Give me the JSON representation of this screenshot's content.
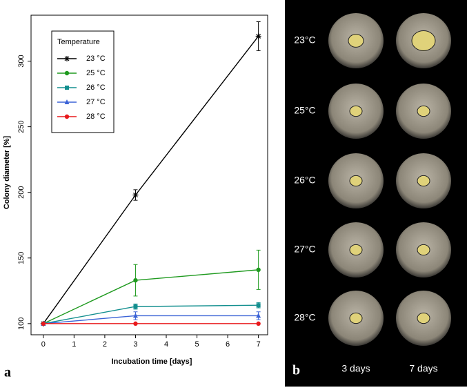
{
  "chart_data": {
    "type": "line",
    "panel_label": "a",
    "x_label": "Incubation time [days]",
    "y_label": "Colony diameter [%]",
    "x": [
      0,
      3,
      7
    ],
    "xlim": [
      -0.4,
      7.3
    ],
    "xticks": [
      0,
      1,
      2,
      3,
      4,
      5,
      6,
      7
    ],
    "ylim": [
      91.5,
      335
    ],
    "yticks": [
      100,
      150,
      200,
      250,
      300
    ],
    "legend_title": "Temperature",
    "legend_position": "upper left",
    "series": [
      {
        "name": "23 °C",
        "color": "#000000",
        "marker": "star",
        "values": [
          100,
          198,
          319
        ],
        "errors": [
          0,
          4,
          11
        ]
      },
      {
        "name": "25 °C",
        "color": "#1f9a1f",
        "marker": "circle",
        "values": [
          100,
          133,
          141
        ],
        "errors": [
          0,
          12,
          15
        ]
      },
      {
        "name": "26 °C",
        "color": "#138f8f",
        "marker": "square",
        "values": [
          100,
          113,
          114
        ],
        "errors": [
          0,
          2,
          2
        ]
      },
      {
        "name": "27 °C",
        "color": "#3a62d6",
        "marker": "triangle",
        "values": [
          100,
          106,
          106
        ],
        "errors": [
          0,
          3,
          3
        ]
      },
      {
        "name": "28 °C",
        "color": "#e8191c",
        "marker": "circle",
        "values": [
          100,
          100,
          100
        ],
        "errors": [
          0,
          0,
          0
        ]
      }
    ]
  },
  "photo_panel": {
    "panel_label": "b",
    "rows": [
      "23°C",
      "25°C",
      "26°C",
      "27°C",
      "28°C"
    ],
    "columns": [
      "3 days",
      "7 days"
    ]
  }
}
